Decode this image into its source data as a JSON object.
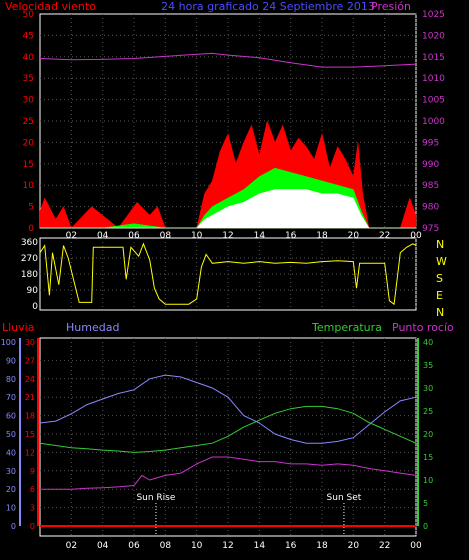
{
  "chart_data": [
    {
      "type": "line",
      "title": "24 hora graficado  24 Septiembre 2013",
      "left_axis": {
        "label": "Velocidad viento",
        "ticks": [
          0,
          5,
          10,
          15,
          20,
          25,
          30,
          35,
          40,
          45,
          50
        ],
        "range": [
          0,
          50
        ]
      },
      "right_axis": {
        "label": "Presión",
        "ticks": [
          975,
          980,
          985,
          990,
          995,
          1000,
          1005,
          1010,
          1015,
          1020,
          1025
        ],
        "range": [
          975,
          1025
        ]
      },
      "x_ticks": [
        "02",
        "04",
        "06",
        "08",
        "10",
        "12",
        "14",
        "16",
        "18",
        "20",
        "22",
        "00"
      ],
      "colors": {
        "wind": "#ff0000",
        "gust": "#00ff00",
        "average": "#ffffff",
        "pressure": "#cc33cc"
      },
      "series": [
        {
          "key": "pressure",
          "axis": "right",
          "x": [
            0,
            2,
            4,
            6,
            8,
            10,
            11,
            12,
            14,
            15,
            16,
            18,
            20,
            22,
            24
          ],
          "y": [
            1014.6,
            1014.3,
            1014.4,
            1014.6,
            1015.1,
            1015.6,
            1015.8,
            1015.4,
            1014.8,
            1014.2,
            1013.6,
            1012.6,
            1012.6,
            1012.9,
            1013.3
          ]
        },
        {
          "key": "wind",
          "axis": "left",
          "x": [
            0,
            0.3,
            1,
            1.5,
            2,
            3.3,
            5,
            6.2,
            7,
            7.5,
            8,
            9,
            10,
            10.5,
            11,
            11.5,
            12,
            12.5,
            13,
            13.5,
            14,
            14.5,
            15,
            15.5,
            16,
            16.5,
            17,
            17.5,
            18,
            18.5,
            19,
            19.5,
            20,
            20.3,
            20.6,
            21,
            23,
            23.6,
            24
          ],
          "y": [
            4,
            7,
            2,
            5,
            0,
            5,
            0,
            6,
            3,
            5,
            0,
            0,
            0,
            8,
            11,
            18,
            22,
            15,
            20,
            24,
            17,
            25,
            20,
            24,
            18,
            21,
            19,
            16,
            22,
            14,
            19,
            16,
            12,
            20,
            8,
            0,
            0,
            7,
            3
          ]
        },
        {
          "key": "gust",
          "axis": "left",
          "x": [
            0,
            2,
            4,
            6,
            8,
            10,
            10.5,
            11,
            12,
            13,
            14,
            15,
            16,
            17,
            18,
            19,
            20,
            20.5,
            21,
            22,
            24
          ],
          "y": [
            0,
            0,
            0,
            1,
            0,
            0,
            3,
            5,
            7,
            9,
            12,
            14,
            13,
            12,
            11,
            10,
            9,
            4,
            0,
            0,
            0
          ]
        },
        {
          "key": "average",
          "axis": "left",
          "x": [
            0,
            2,
            4,
            6,
            8,
            10,
            10.5,
            11,
            12,
            13,
            14,
            15,
            16,
            17,
            18,
            19,
            20,
            20.5,
            21,
            22,
            24
          ],
          "y": [
            0,
            0,
            0,
            0,
            0,
            0,
            2,
            3,
            5,
            6,
            8,
            9,
            9,
            9,
            8,
            8,
            7,
            3,
            0,
            0,
            0
          ]
        }
      ]
    },
    {
      "type": "line",
      "left_axis": {
        "ticks": [
          0,
          90,
          180,
          270,
          360
        ],
        "range": [
          0,
          360
        ]
      },
      "right_axis": {
        "ticks": [
          "N",
          "W",
          "S",
          "E",
          "N"
        ]
      },
      "x_ticks": [
        "02",
        "04",
        "06",
        "08",
        "10",
        "12",
        "14",
        "16",
        "18",
        "20",
        "22",
        "00"
      ],
      "colors": {
        "direction": "#ffff00"
      },
      "series": [
        {
          "key": "direction",
          "x": [
            0,
            0.3,
            0.6,
            0.8,
            1.2,
            1.5,
            1.8,
            2.5,
            3.3,
            3.4,
            5.3,
            5.5,
            5.8,
            6.3,
            6.6,
            7,
            7.3,
            7.6,
            8,
            8.5,
            9.5,
            10,
            10.3,
            10.6,
            11,
            12,
            13,
            14,
            15,
            16,
            17,
            18,
            19,
            20,
            20.2,
            20.4,
            21,
            22,
            22.3,
            22.6,
            23,
            23.4,
            23.8,
            24
          ],
          "y": [
            300,
            340,
            60,
            300,
            120,
            340,
            270,
            20,
            20,
            330,
            330,
            150,
            330,
            280,
            350,
            260,
            100,
            40,
            10,
            10,
            10,
            40,
            220,
            290,
            240,
            250,
            240,
            250,
            240,
            245,
            240,
            250,
            255,
            250,
            100,
            240,
            240,
            240,
            30,
            10,
            300,
            330,
            350,
            340
          ]
        }
      ]
    },
    {
      "type": "line",
      "legend": [
        "Lluvia",
        "Humedad",
        "Temperatura",
        "Punto rocío"
      ],
      "left_axis_humidity": {
        "ticks": [
          0,
          10,
          20,
          30,
          40,
          50,
          60,
          70,
          80,
          90,
          100
        ],
        "range": [
          0,
          100
        ]
      },
      "left_axis_rain": {
        "ticks": [
          0,
          3,
          6,
          9,
          12,
          15,
          18,
          21,
          24,
          27,
          30
        ],
        "range": [
          0,
          30
        ]
      },
      "right_axis_temp": {
        "ticks": [
          0,
          5,
          10,
          15,
          20,
          25,
          30,
          35,
          40
        ],
        "range": [
          0,
          40
        ]
      },
      "x_ticks": [
        "02",
        "04",
        "06",
        "08",
        "10",
        "12",
        "14",
        "16",
        "18",
        "20",
        "22",
        "00"
      ],
      "annotations": [
        {
          "label": "Sun Rise",
          "x": 7.4
        },
        {
          "label": "Sun Set",
          "x": 19.4
        }
      ],
      "colors": {
        "rain": "#ff0000",
        "humidity": "#8888ff",
        "temperature": "#33cc33",
        "dewpoint": "#cc33cc"
      },
      "series": [
        {
          "key": "humidity",
          "axis": "humidity",
          "x": [
            0,
            1,
            2,
            3,
            4,
            5,
            6,
            7,
            8,
            9,
            10,
            11,
            12,
            13,
            14,
            15,
            16,
            17,
            18,
            19,
            20,
            21,
            22,
            23,
            24
          ],
          "y": [
            56,
            57,
            61,
            66,
            69,
            72,
            74,
            80,
            82,
            81,
            78,
            75,
            70,
            60,
            56,
            50,
            47,
            45,
            45,
            46,
            48,
            55,
            62,
            68,
            70
          ]
        },
        {
          "key": "temperature",
          "axis": "temp",
          "x": [
            0,
            1,
            2,
            3,
            4,
            5,
            6,
            7,
            8,
            9,
            10,
            11,
            12,
            13,
            14,
            15,
            16,
            17,
            18,
            19,
            20,
            21,
            22,
            23,
            24
          ],
          "y": [
            18,
            17.5,
            17,
            16.8,
            16.5,
            16.3,
            16,
            16.2,
            16.5,
            17,
            17.5,
            18,
            19.5,
            21.5,
            23,
            24.5,
            25.5,
            26,
            26,
            25.5,
            24.5,
            22.5,
            21,
            19.5,
            18
          ]
        },
        {
          "key": "dewpoint",
          "axis": "temp",
          "x": [
            0,
            1,
            2,
            3,
            4,
            5,
            6,
            6.5,
            7,
            8,
            9,
            10,
            11,
            12,
            13,
            14,
            15,
            16,
            17,
            18,
            19,
            20,
            21,
            22,
            23,
            24
          ],
          "y": [
            8,
            8,
            8,
            8.2,
            8.3,
            8.5,
            8.8,
            11,
            10,
            11,
            11.5,
            13.5,
            15,
            15,
            14.5,
            14,
            14,
            13.5,
            13.5,
            13.2,
            13.5,
            13.2,
            12.5,
            12,
            11.5,
            11
          ]
        },
        {
          "key": "rain",
          "axis": "rain",
          "x": [
            0,
            24
          ],
          "y": [
            0,
            0
          ]
        }
      ]
    }
  ]
}
